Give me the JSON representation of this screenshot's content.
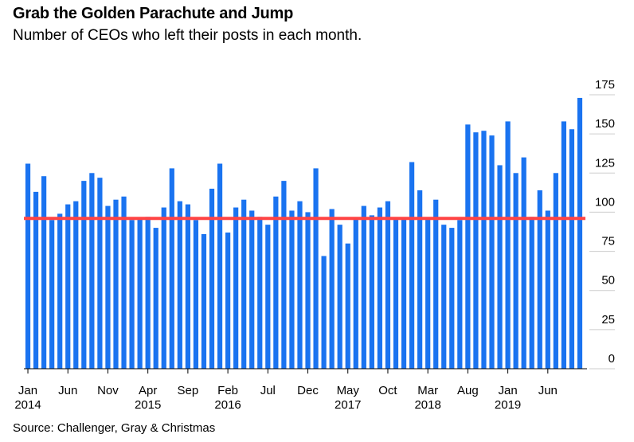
{
  "chart_data": {
    "type": "bar",
    "title": "Grab the Golden Parachute and Jump",
    "subtitle": "Number of CEOs who left their posts in each month.",
    "source": "Source: Challenger, Gray & Christmas",
    "ylim": [
      0,
      175
    ],
    "y_ticks": [
      0,
      25,
      50,
      75,
      100,
      125,
      150,
      175
    ],
    "average_line": 96,
    "colors": {
      "bars": "#1a73f0",
      "average": "#ff4444"
    },
    "x_tick_labels": [
      {
        "index": 0,
        "line1": "Jan",
        "line2": "2014"
      },
      {
        "index": 5,
        "line1": "Jun",
        "line2": ""
      },
      {
        "index": 10,
        "line1": "Nov",
        "line2": ""
      },
      {
        "index": 15,
        "line1": "Apr",
        "line2": "2015"
      },
      {
        "index": 20,
        "line1": "Sep",
        "line2": ""
      },
      {
        "index": 25,
        "line1": "Feb",
        "line2": "2016"
      },
      {
        "index": 30,
        "line1": "Jul",
        "line2": ""
      },
      {
        "index": 35,
        "line1": "Dec",
        "line2": ""
      },
      {
        "index": 40,
        "line1": "May",
        "line2": "2017"
      },
      {
        "index": 45,
        "line1": "Oct",
        "line2": ""
      },
      {
        "index": 50,
        "line1": "Mar",
        "line2": "2018"
      },
      {
        "index": 55,
        "line1": "Aug",
        "line2": ""
      },
      {
        "index": 60,
        "line1": "Jan",
        "line2": "2019"
      },
      {
        "index": 65,
        "line1": "Jun",
        "line2": ""
      }
    ],
    "values": [
      131,
      113,
      123,
      95,
      99,
      105,
      107,
      120,
      125,
      122,
      104,
      108,
      110,
      95,
      96,
      97,
      90,
      103,
      128,
      107,
      105,
      95,
      86,
      115,
      131,
      87,
      103,
      108,
      101,
      97,
      92,
      110,
      120,
      101,
      107,
      100,
      128,
      72,
      102,
      92,
      80,
      96,
      104,
      98,
      103,
      107,
      96,
      96,
      132,
      114,
      96,
      108,
      92,
      90,
      95,
      156,
      151,
      152,
      149,
      130,
      158,
      125,
      135,
      97,
      114,
      101,
      125,
      158,
      153,
      173
    ]
  }
}
